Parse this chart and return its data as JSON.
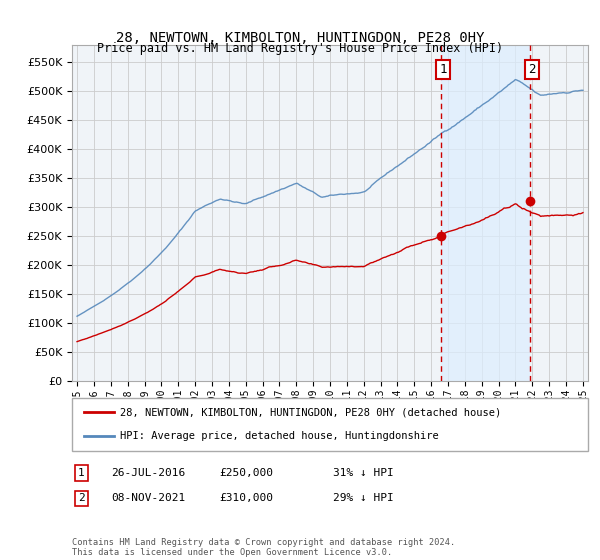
{
  "title": "28, NEWTOWN, KIMBOLTON, HUNTINGDON, PE28 0HY",
  "subtitle": "Price paid vs. HM Land Registry's House Price Index (HPI)",
  "legend_line1": "28, NEWTOWN, KIMBOLTON, HUNTINGDON, PE28 0HY (detached house)",
  "legend_line2": "HPI: Average price, detached house, Huntingdonshire",
  "annotation1_date": "26-JUL-2016",
  "annotation1_price": "£250,000",
  "annotation1_hpi": "31% ↓ HPI",
  "annotation2_date": "08-NOV-2021",
  "annotation2_price": "£310,000",
  "annotation2_hpi": "29% ↓ HPI",
  "copyright": "Contains HM Land Registry data © Crown copyright and database right 2024.\nThis data is licensed under the Open Government Licence v3.0.",
  "red_color": "#cc0000",
  "blue_color": "#5588bb",
  "shade_color": "#ddeeff",
  "vline_color": "#cc0000",
  "grid_color": "#cccccc",
  "bg_color": "#ffffff",
  "plot_bg_color": "#f0f4f8",
  "ylim": [
    0,
    580000
  ],
  "yticks": [
    0,
    50000,
    100000,
    150000,
    200000,
    250000,
    300000,
    350000,
    400000,
    450000,
    500000,
    550000
  ],
  "x_start_year": 1995,
  "x_end_year": 2025,
  "event1_year": 2016.57,
  "event2_year": 2021.85,
  "sale1_value": 250000,
  "sale2_value": 310000
}
